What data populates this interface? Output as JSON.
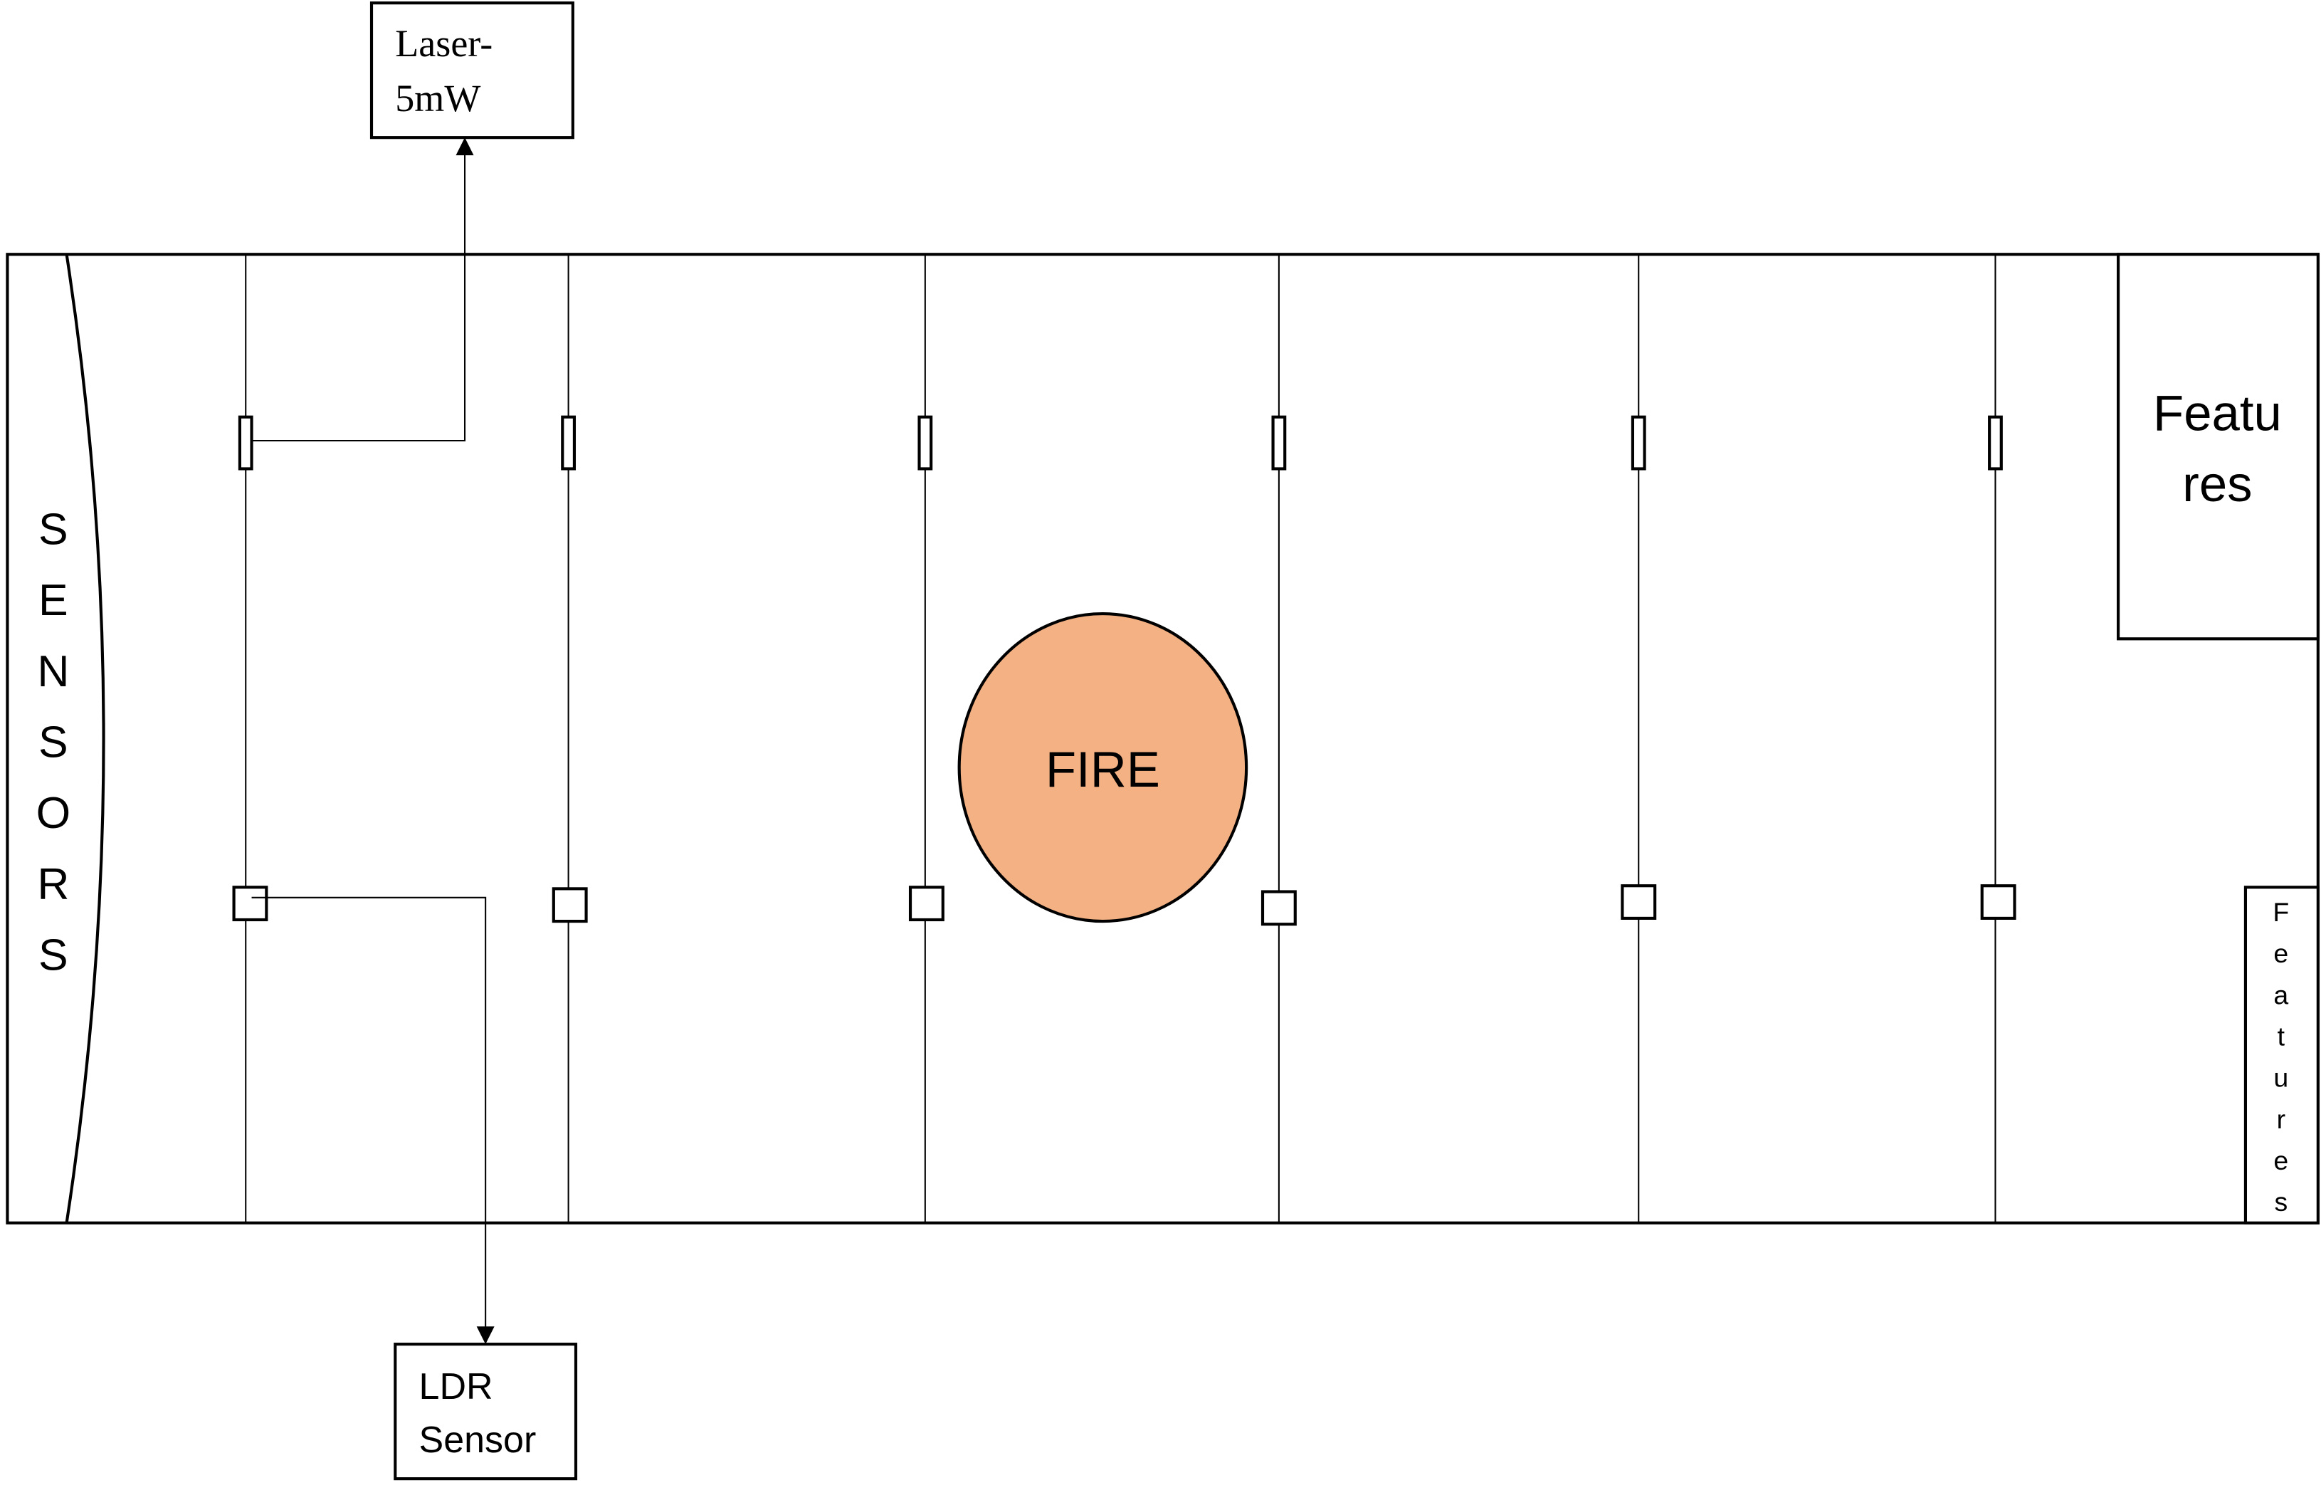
{
  "laser_box": {
    "lines": [
      "Laser-",
      "5mW"
    ]
  },
  "ldr_box": {
    "lines": [
      "LDR",
      "Sensor"
    ]
  },
  "sensors_label": [
    "S",
    "E",
    "N",
    "S",
    "O",
    "R",
    "S"
  ],
  "fire_label": "FIRE",
  "features_top": {
    "lines": [
      "Featu",
      "res"
    ]
  },
  "features_side": [
    "F",
    "e",
    "a",
    "t",
    "u",
    "r",
    "e",
    "s"
  ],
  "colors": {
    "fire_fill": "#f4b183",
    "stroke": "#000000",
    "background": "#ffffff"
  }
}
